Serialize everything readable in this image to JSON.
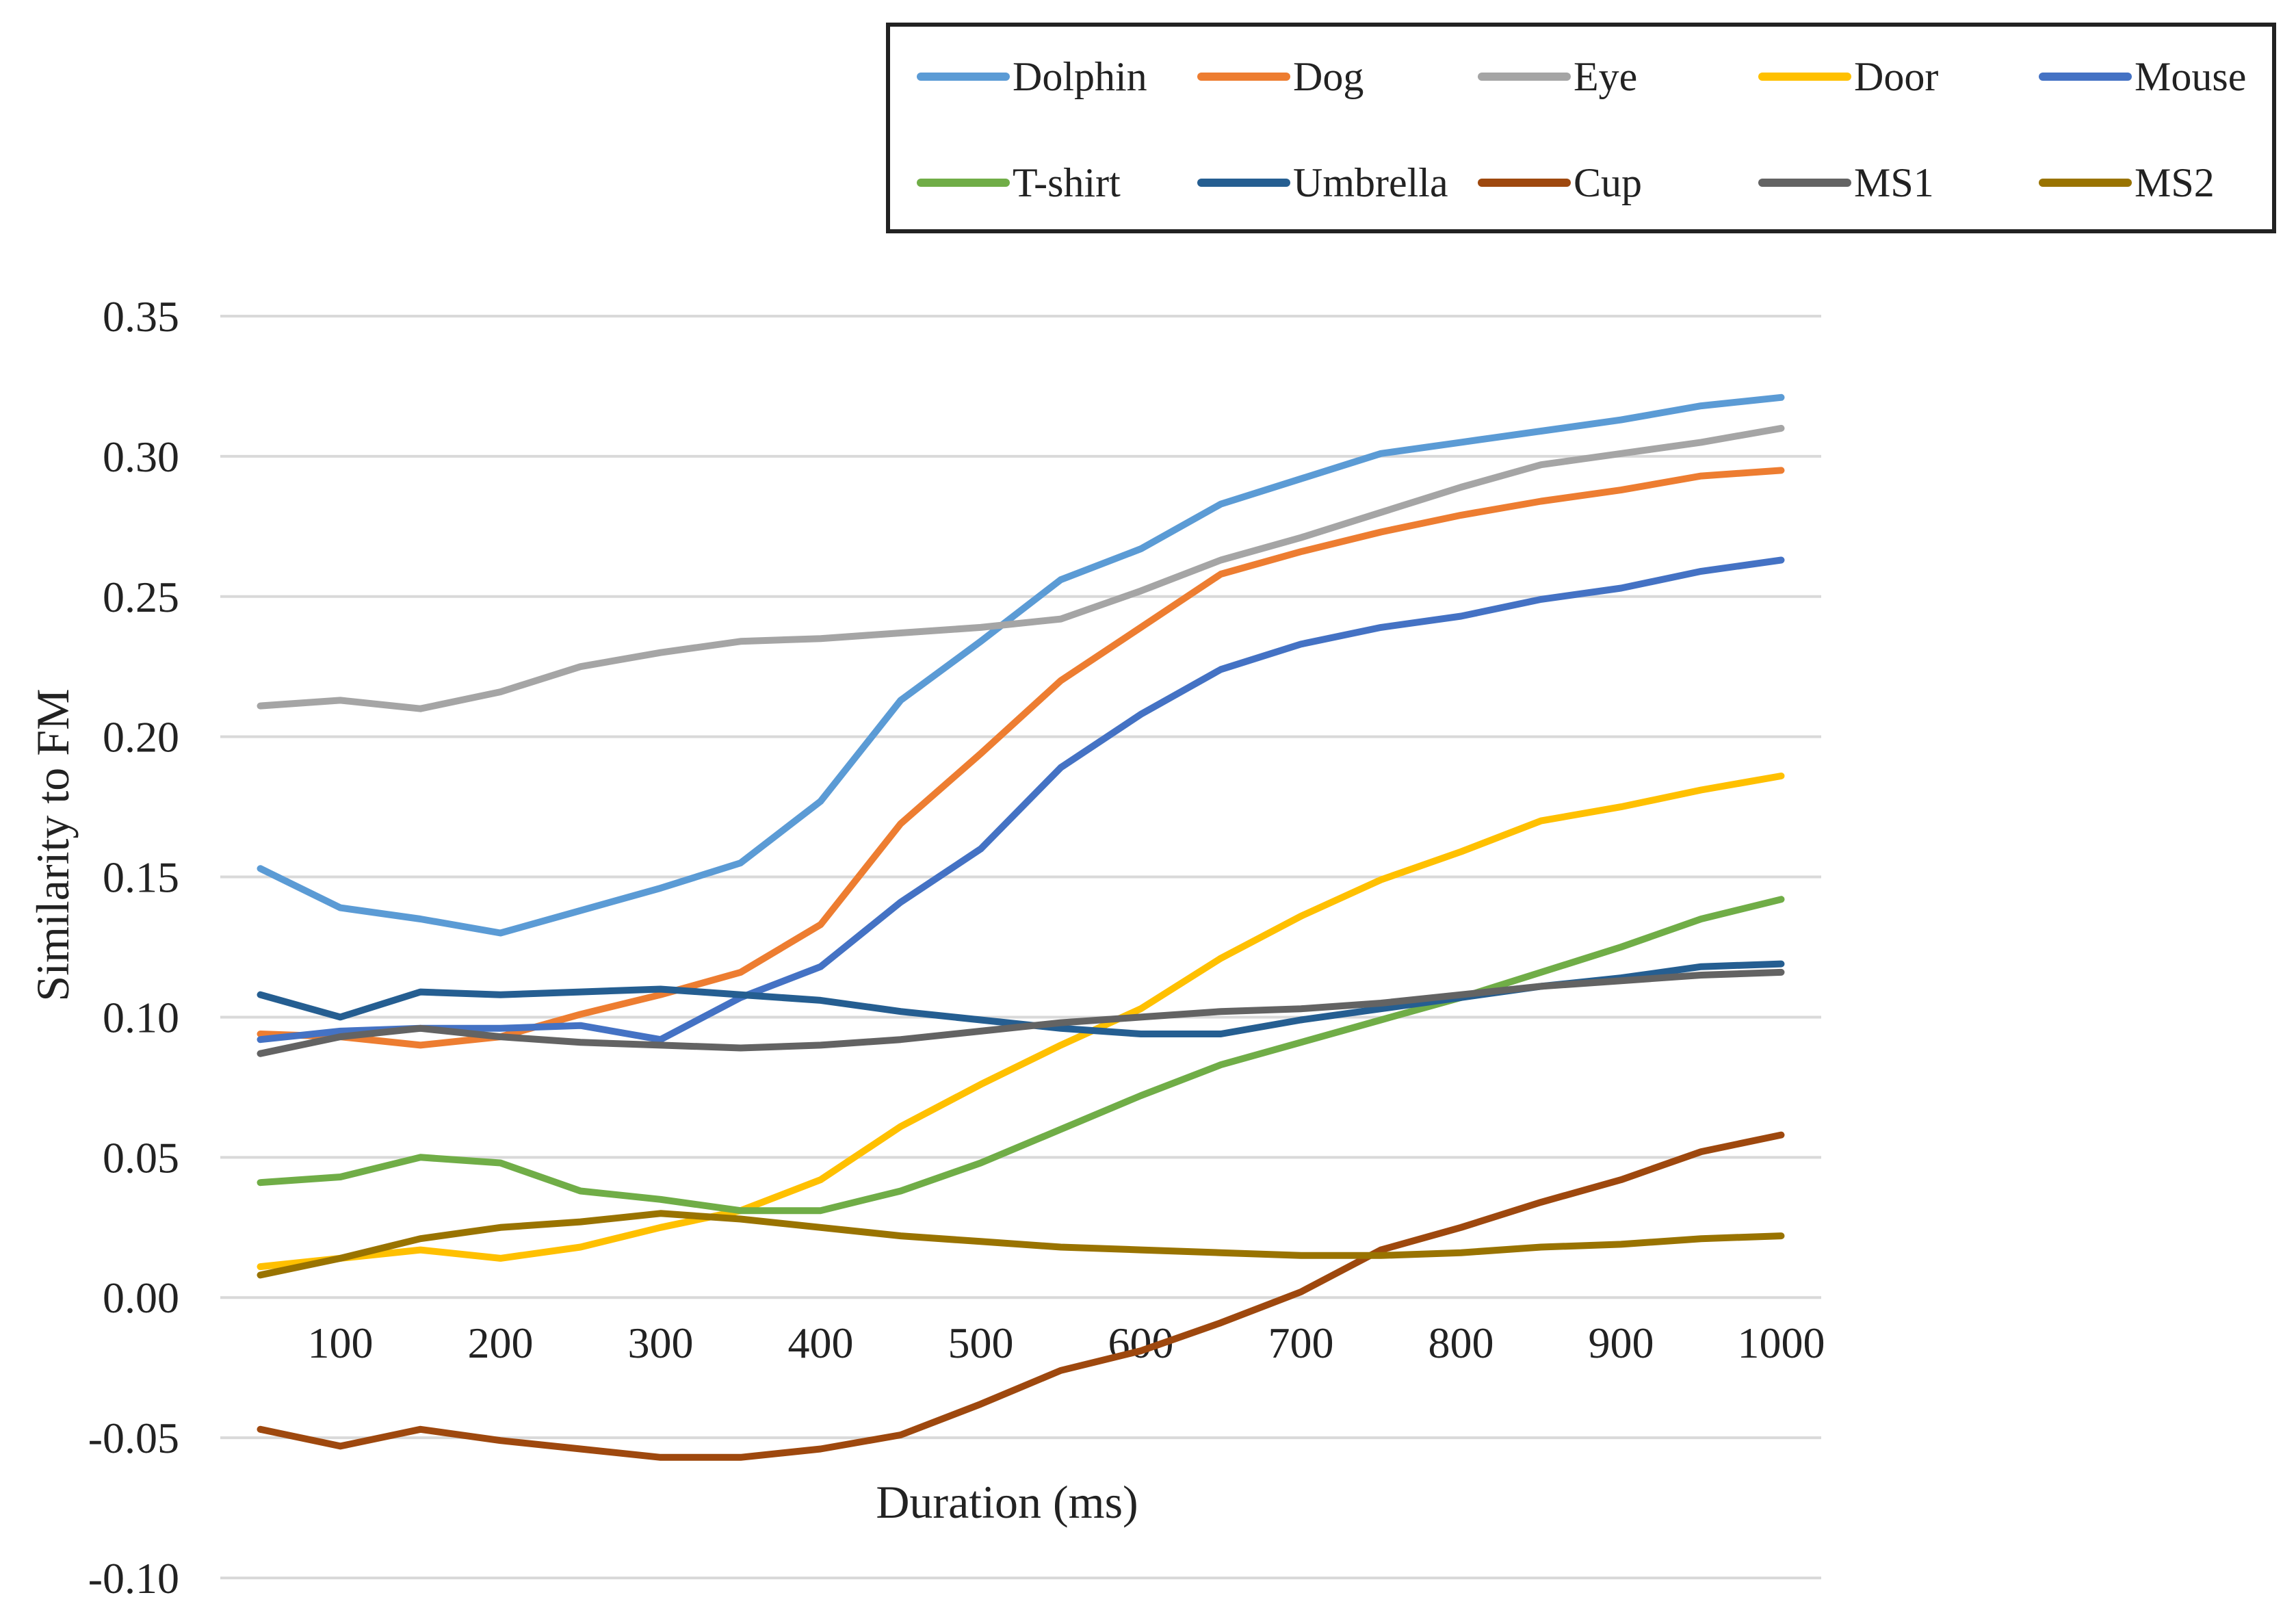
{
  "chart_data": {
    "type": "line",
    "title": "",
    "xlabel": "Duration (ms)",
    "ylabel": "Similarity to FM",
    "x": [
      50,
      100,
      150,
      200,
      250,
      300,
      350,
      400,
      450,
      500,
      550,
      600,
      650,
      700,
      750,
      800,
      850,
      900,
      950,
      1000
    ],
    "xticks": [
      "100",
      "200",
      "300",
      "400",
      "500",
      "600",
      "700",
      "800",
      "900",
      "1000"
    ],
    "xlim": [
      25,
      1025
    ],
    "ylim": [
      -0.1,
      0.35
    ],
    "yticks": [
      "-0.10",
      "-0.05",
      "0.00",
      "0.05",
      "0.10",
      "0.15",
      "0.20",
      "0.25",
      "0.30",
      "0.35"
    ],
    "grid": true,
    "legend_position": "top",
    "series": [
      {
        "name": "Dolphin",
        "color": "#5b9bd5",
        "values": [
          0.153,
          0.139,
          0.135,
          0.13,
          0.138,
          0.146,
          0.155,
          0.177,
          0.213,
          0.234,
          0.256,
          0.267,
          0.283,
          0.292,
          0.301,
          0.305,
          0.309,
          0.313,
          0.318,
          0.321
        ]
      },
      {
        "name": "Dog",
        "color": "#ed7d31",
        "values": [
          0.094,
          0.093,
          0.09,
          0.093,
          0.101,
          0.108,
          0.116,
          0.133,
          0.169,
          0.194,
          0.22,
          0.239,
          0.258,
          0.266,
          0.273,
          0.279,
          0.284,
          0.288,
          0.293,
          0.295
        ]
      },
      {
        "name": "Eye",
        "color": "#a5a5a5",
        "values": [
          0.211,
          0.213,
          0.21,
          0.216,
          0.225,
          0.23,
          0.234,
          0.235,
          0.237,
          0.239,
          0.242,
          0.252,
          0.263,
          0.271,
          0.28,
          0.289,
          0.297,
          0.301,
          0.305,
          0.31
        ]
      },
      {
        "name": "Door",
        "color": "#ffc000",
        "values": [
          0.011,
          0.014,
          0.017,
          0.014,
          0.018,
          0.025,
          0.031,
          0.042,
          0.061,
          0.076,
          0.09,
          0.103,
          0.121,
          0.136,
          0.149,
          0.159,
          0.17,
          0.175,
          0.181,
          0.186
        ]
      },
      {
        "name": "Mouse",
        "color": "#4472c4",
        "values": [
          0.092,
          0.095,
          0.096,
          0.096,
          0.097,
          0.092,
          0.107,
          0.118,
          0.141,
          0.16,
          0.189,
          0.208,
          0.224,
          0.233,
          0.239,
          0.243,
          0.249,
          0.253,
          0.259,
          0.263
        ]
      },
      {
        "name": "T-shirt",
        "color": "#70ad47",
        "values": [
          0.041,
          0.043,
          0.05,
          0.048,
          0.038,
          0.035,
          0.031,
          0.031,
          0.038,
          0.048,
          0.06,
          0.072,
          0.083,
          0.091,
          0.099,
          0.107,
          0.116,
          0.125,
          0.135,
          0.142
        ]
      },
      {
        "name": "Umbrella",
        "color": "#255e91",
        "values": [
          0.108,
          0.1,
          0.109,
          0.108,
          0.109,
          0.11,
          0.108,
          0.106,
          0.102,
          0.099,
          0.096,
          0.094,
          0.094,
          0.099,
          0.103,
          0.107,
          0.111,
          0.114,
          0.118,
          0.119
        ]
      },
      {
        "name": "Cup",
        "color": "#9e480e",
        "values": [
          -0.047,
          -0.053,
          -0.047,
          -0.051,
          -0.054,
          -0.057,
          -0.057,
          -0.054,
          -0.049,
          -0.038,
          -0.026,
          -0.019,
          -0.009,
          0.002,
          0.017,
          0.025,
          0.034,
          0.042,
          0.052,
          0.058
        ]
      },
      {
        "name": "MS1",
        "color": "#636363",
        "values": [
          0.087,
          0.093,
          0.096,
          0.093,
          0.091,
          0.09,
          0.089,
          0.09,
          0.092,
          0.095,
          0.098,
          0.1,
          0.102,
          0.103,
          0.105,
          0.108,
          0.111,
          0.113,
          0.115,
          0.116
        ]
      },
      {
        "name": "MS2",
        "color": "#997300",
        "values": [
          0.008,
          0.014,
          0.021,
          0.025,
          0.027,
          0.03,
          0.028,
          0.025,
          0.022,
          0.02,
          0.018,
          0.017,
          0.016,
          0.015,
          0.015,
          0.016,
          0.018,
          0.019,
          0.021,
          0.022
        ]
      }
    ]
  }
}
